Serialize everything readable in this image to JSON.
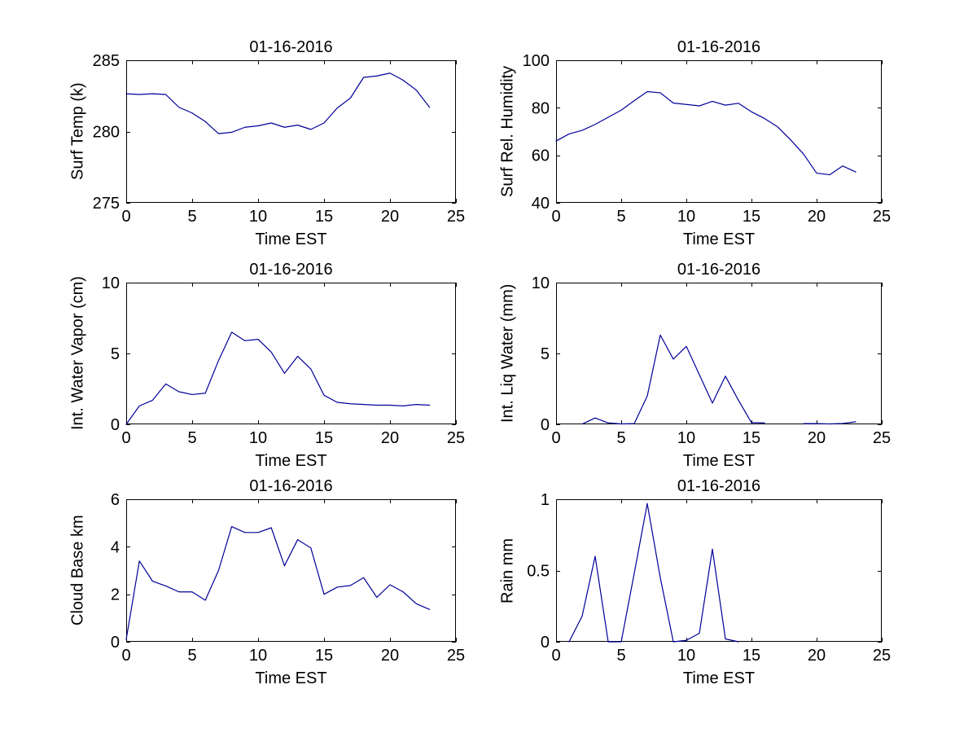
{
  "figure": {
    "background": "#ffffff",
    "axis_color": "#000000",
    "line_color": "#000099",
    "tick_label_color": "#000000"
  },
  "chart_data": [
    {
      "type": "line",
      "title": "01-16-2016",
      "xlabel": "Time EST",
      "ylabel": "Surf Temp (k)",
      "xlim": [
        0,
        25
      ],
      "ylim": [
        275,
        285
      ],
      "xticks": [
        0,
        5,
        10,
        15,
        20,
        25
      ],
      "yticks": [
        275,
        280,
        285
      ],
      "grid": false,
      "legend": null,
      "x": [
        0,
        1,
        2,
        3,
        4,
        5,
        6,
        7,
        8,
        9,
        10,
        11,
        12,
        13,
        14,
        15,
        16,
        17,
        18,
        19,
        20,
        21,
        22,
        23
      ],
      "values": [
        282.65,
        282.6,
        282.65,
        282.6,
        281.7,
        281.3,
        280.7,
        279.85,
        279.95,
        280.3,
        280.4,
        280.6,
        280.3,
        280.45,
        280.15,
        280.6,
        281.65,
        282.35,
        283.8,
        283.9,
        284.1,
        283.6,
        282.9,
        281.7
      ]
    },
    {
      "type": "line",
      "title": "01-16-2016",
      "xlabel": "Time EST",
      "ylabel": "Surf Rel. Humidity",
      "xlim": [
        0,
        25
      ],
      "ylim": [
        40,
        100
      ],
      "xticks": [
        0,
        5,
        10,
        15,
        20,
        25
      ],
      "yticks": [
        40,
        60,
        80,
        100
      ],
      "grid": false,
      "legend": null,
      "x": [
        0,
        1,
        2,
        3,
        4,
        5,
        6,
        7,
        8,
        9,
        10,
        11,
        12,
        13,
        14,
        15,
        16,
        17,
        18,
        19,
        20,
        21,
        22,
        23
      ],
      "values": [
        66,
        69,
        70.5,
        73,
        76,
        79,
        83,
        86.8,
        86.3,
        82,
        81.4,
        80.8,
        82.7,
        81.1,
        81.9,
        78.3,
        75.5,
        72,
        66.5,
        60.5,
        52.5,
        51.8,
        55.5,
        53
      ]
    },
    {
      "type": "line",
      "title": "01-16-2016",
      "xlabel": "Time EST",
      "ylabel": "Int. Water Vapor (cm)",
      "xlim": [
        0,
        25
      ],
      "ylim": [
        0,
        10
      ],
      "xticks": [
        0,
        5,
        10,
        15,
        20,
        25
      ],
      "yticks": [
        0,
        5,
        10
      ],
      "grid": false,
      "legend": null,
      "x": [
        0,
        1,
        2,
        3,
        4,
        5,
        6,
        7,
        8,
        9,
        10,
        11,
        12,
        13,
        14,
        15,
        16,
        17,
        18,
        19,
        20,
        21,
        22,
        23
      ],
      "values": [
        0,
        1.3,
        1.7,
        2.85,
        2.3,
        2.1,
        2.2,
        4.5,
        6.5,
        5.9,
        6.0,
        5.1,
        3.6,
        4.8,
        3.9,
        2.05,
        1.55,
        1.45,
        1.4,
        1.35,
        1.35,
        1.3,
        1.4,
        1.35
      ]
    },
    {
      "type": "line",
      "title": "01-16-2016",
      "xlabel": "Time EST",
      "ylabel": "Int. Liq Water (mm)",
      "xlim": [
        0,
        25
      ],
      "ylim": [
        0,
        10
      ],
      "xticks": [
        0,
        5,
        10,
        15,
        20,
        25
      ],
      "yticks": [
        0,
        5,
        10
      ],
      "grid": false,
      "legend": null,
      "x": [
        0,
        1,
        2,
        3,
        4,
        5,
        6,
        7,
        8,
        9,
        10,
        11,
        12,
        13,
        14,
        15,
        16,
        17,
        18,
        19,
        20,
        21,
        22,
        23
      ],
      "values": [
        null,
        null,
        0.02,
        0.45,
        0.1,
        0.03,
        0.05,
        2.0,
        6.3,
        4.6,
        5.5,
        3.5,
        1.5,
        3.4,
        1.7,
        0.12,
        0.1,
        null,
        null,
        0.05,
        0.05,
        0.03,
        0.06,
        0.18
      ]
    },
    {
      "type": "line",
      "title": "01-16-2016",
      "xlabel": "Time EST",
      "ylabel": "Cloud Base km",
      "xlim": [
        0,
        25
      ],
      "ylim": [
        0,
        6
      ],
      "xticks": [
        0,
        5,
        10,
        15,
        20,
        25
      ],
      "yticks": [
        0,
        2,
        4,
        6
      ],
      "grid": false,
      "legend": null,
      "x": [
        0,
        1,
        2,
        3,
        4,
        5,
        6,
        7,
        8,
        9,
        10,
        11,
        12,
        13,
        14,
        15,
        16,
        17,
        18,
        19,
        20,
        21,
        22,
        23
      ],
      "values": [
        0.1,
        3.4,
        2.55,
        2.35,
        2.1,
        2.1,
        1.75,
        3.0,
        4.85,
        4.6,
        4.6,
        4.8,
        3.2,
        4.3,
        3.95,
        2.0,
        2.3,
        2.37,
        2.7,
        1.87,
        2.4,
        2.1,
        1.6,
        1.36
      ]
    },
    {
      "type": "line",
      "title": "01-16-2016",
      "xlabel": "Time EST",
      "ylabel": "Rain mm",
      "xlim": [
        0,
        25
      ],
      "ylim": [
        0,
        1
      ],
      "xticks": [
        0,
        5,
        10,
        15,
        20,
        25
      ],
      "yticks": [
        0,
        0.5,
        1
      ],
      "grid": false,
      "legend": null,
      "x": [
        0,
        1,
        2,
        3,
        4,
        5,
        6,
        7,
        8,
        9,
        10,
        11,
        12,
        13,
        14,
        15,
        16,
        17,
        18,
        19,
        20,
        21,
        22,
        23
      ],
      "values": [
        null,
        0,
        0.18,
        0.6,
        0,
        0,
        0.48,
        0.97,
        0.45,
        0,
        0.01,
        0.06,
        0.65,
        0.02,
        0,
        null,
        null,
        null,
        null,
        null,
        null,
        null,
        null,
        null
      ]
    }
  ]
}
